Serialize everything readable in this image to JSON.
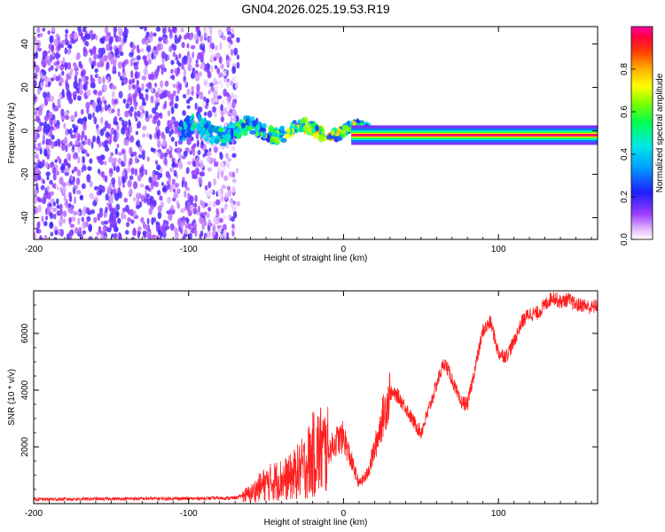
{
  "title": "GN04.2026.025.19.53.R19",
  "chart_data": [
    {
      "type": "heatmap",
      "xlabel": "Height of straight line (km)",
      "ylabel": "Frequency (Hz)",
      "xlim": [
        -200,
        164
      ],
      "ylim": [
        -50,
        48
      ],
      "xticks": [
        -200,
        -100,
        0,
        100
      ],
      "yticks": [
        -40,
        -20,
        0,
        20,
        40
      ],
      "colorbar_label": "Normalized spectral amplitude",
      "colorbar_ticks": [
        0.0,
        0.2,
        0.4,
        0.6,
        0.8
      ],
      "colorbar_range": [
        0,
        1
      ],
      "regions": [
        {
          "name": "noise",
          "x_range": [
            -200,
            -68
          ],
          "f_range": [
            -50,
            48
          ],
          "amplitude": [
            0.05,
            0.2
          ]
        },
        {
          "name": "transition",
          "x_range": [
            -105,
            20
          ],
          "f_center": 0,
          "amplitude": [
            0.2,
            0.95
          ]
        },
        {
          "name": "carrier",
          "x_range": [
            5,
            164
          ],
          "f_center": -2,
          "amplitude": 1.0
        }
      ]
    },
    {
      "type": "line",
      "xlabel": "Height of straight line (km)",
      "ylabel": "SNR (10 * v/v)",
      "xlim": [
        -200,
        164
      ],
      "ylim": [
        0,
        7500
      ],
      "xticks": [
        -200,
        -100,
        0,
        100
      ],
      "yticks": [
        2000,
        4000,
        6000
      ],
      "series": [
        {
          "name": "SNR",
          "color": "#ff2020",
          "x": [
            -200,
            -150,
            -100,
            -70,
            -60,
            -55,
            -50,
            -45,
            -40,
            -35,
            -30,
            -25,
            -20,
            -15,
            -10,
            -5,
            0,
            5,
            10,
            15,
            20,
            25,
            30,
            35,
            40,
            45,
            50,
            55,
            60,
            65,
            70,
            75,
            80,
            85,
            90,
            95,
            100,
            105,
            110,
            115,
            120,
            125,
            130,
            135,
            140,
            145,
            150,
            155,
            160,
            164
          ],
          "y": [
            150,
            170,
            180,
            200,
            350,
            550,
            700,
            800,
            850,
            900,
            1100,
            1300,
            1700,
            1900,
            1800,
            2200,
            2350,
            1500,
            700,
            1000,
            1900,
            3000,
            3900,
            3800,
            3400,
            2900,
            2500,
            3300,
            4200,
            5000,
            4400,
            3600,
            3500,
            4800,
            6100,
            6400,
            5300,
            5200,
            5700,
            6400,
            6700,
            6700,
            7000,
            7300,
            7100,
            7200,
            7000,
            7000,
            6900,
            7000
          ]
        }
      ]
    }
  ]
}
